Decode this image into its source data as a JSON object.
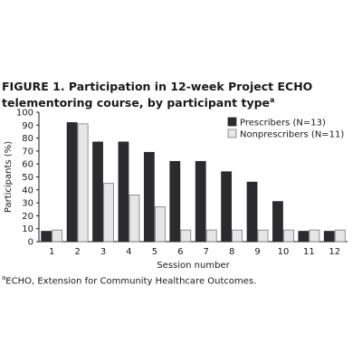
{
  "figure": {
    "label": "FIGURE 1.",
    "title_text": "Participation in 12-week Project ECHO telementoring course, by participant type",
    "title_marker": "a",
    "footnote_marker": "a",
    "footnote_text": "ECHO, Extension for Community Healthcare Outcomes."
  },
  "chart_data": {
    "type": "bar",
    "categories": [
      "1",
      "2",
      "3",
      "4",
      "5",
      "6",
      "7",
      "8",
      "9",
      "10",
      "11",
      "12"
    ],
    "series": [
      {
        "name": "Prescribers (N=13)",
        "values": [
          8,
          92,
          77,
          77,
          69,
          62,
          62,
          54,
          46,
          31,
          8,
          8
        ],
        "color": "#2b2b2e"
      },
      {
        "name": "Nonprescribers (N=11)",
        "values": [
          9,
          91,
          45,
          36,
          27,
          9,
          9,
          9,
          9,
          9,
          9,
          9
        ],
        "color": "#e6e6e6"
      }
    ],
    "xlabel": "Session number",
    "ylabel": "Participants (%)",
    "ylim": [
      0,
      100
    ],
    "yticks": [
      0,
      10,
      20,
      30,
      40,
      50,
      60,
      70,
      80,
      90,
      100
    ],
    "grid": false,
    "legend": "top-right"
  }
}
